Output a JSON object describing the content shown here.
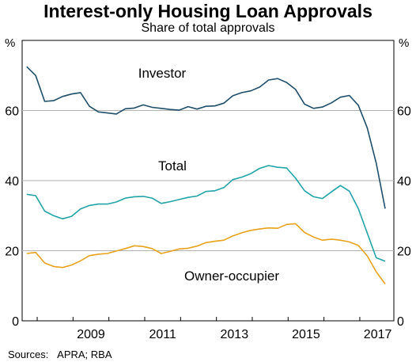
{
  "chart_data": {
    "type": "line",
    "title": "Interest-only Housing Loan Approvals",
    "subtitle": "Share of total approvals",
    "y_unit": "%",
    "ylim": [
      0,
      80
    ],
    "y_ticks": [
      "0",
      "20",
      "40",
      "60"
    ],
    "x_ticks": [
      "2009",
      "2011",
      "2013",
      "2015",
      "2017"
    ],
    "grid": true,
    "x": [
      "2007-09",
      "2007-12",
      "2008-03",
      "2008-06",
      "2008-09",
      "2008-12",
      "2009-03",
      "2009-06",
      "2009-09",
      "2009-12",
      "2010-03",
      "2010-06",
      "2010-09",
      "2010-12",
      "2011-03",
      "2011-06",
      "2011-09",
      "2011-12",
      "2012-03",
      "2012-06",
      "2012-09",
      "2012-12",
      "2013-03",
      "2013-06",
      "2013-09",
      "2013-12",
      "2014-03",
      "2014-06",
      "2014-09",
      "2014-12",
      "2015-03",
      "2015-06",
      "2015-09",
      "2015-12",
      "2016-03",
      "2016-06",
      "2016-09",
      "2016-12",
      "2017-03",
      "2017-06",
      "2017-09"
    ],
    "series": [
      {
        "name": "Investor",
        "color": "#1f4e6b",
        "values": [
          72.5,
          70.0,
          62.6,
          62.8,
          64.0,
          64.7,
          65.1,
          61.2,
          59.6,
          59.3,
          59.0,
          60.5,
          60.7,
          61.6,
          60.9,
          60.6,
          60.3,
          60.1,
          61.1,
          60.4,
          61.2,
          61.3,
          62.1,
          64.2,
          65.1,
          65.6,
          66.7,
          68.7,
          69.1,
          68.0,
          66.0,
          61.8,
          60.6,
          61.0,
          62.2,
          63.8,
          64.3,
          61.5,
          55.0,
          45.0,
          32.0
        ]
      },
      {
        "name": "Total",
        "color": "#22a3a8",
        "values": [
          36.1,
          35.7,
          31.3,
          30.0,
          29.1,
          29.8,
          31.9,
          32.9,
          33.3,
          33.3,
          33.9,
          35.0,
          35.4,
          35.5,
          35.0,
          33.5,
          34.0,
          34.6,
          35.2,
          35.6,
          36.9,
          37.1,
          38.0,
          40.3,
          41.0,
          42.0,
          43.5,
          44.3,
          43.8,
          43.6,
          40.7,
          37.1,
          35.4,
          34.9,
          36.8,
          38.6,
          37.0,
          32.0,
          25.0,
          18.0,
          17.0
        ]
      },
      {
        "name": "Owner-occupier",
        "color": "#e8a21c",
        "values": [
          19.2,
          19.5,
          16.5,
          15.5,
          15.2,
          15.9,
          17.1,
          18.6,
          19.0,
          19.2,
          19.9,
          20.6,
          21.4,
          21.2,
          20.6,
          19.2,
          19.8,
          20.5,
          20.7,
          21.3,
          22.3,
          22.7,
          23.0,
          24.2,
          25.1,
          25.8,
          26.2,
          26.5,
          26.4,
          27.5,
          27.7,
          25.2,
          23.9,
          23.0,
          23.3,
          23.0,
          22.5,
          21.5,
          18.5,
          14.0,
          10.5
        ]
      }
    ]
  },
  "sources_label": "Sources:",
  "sources_text": "APRA; RBA"
}
